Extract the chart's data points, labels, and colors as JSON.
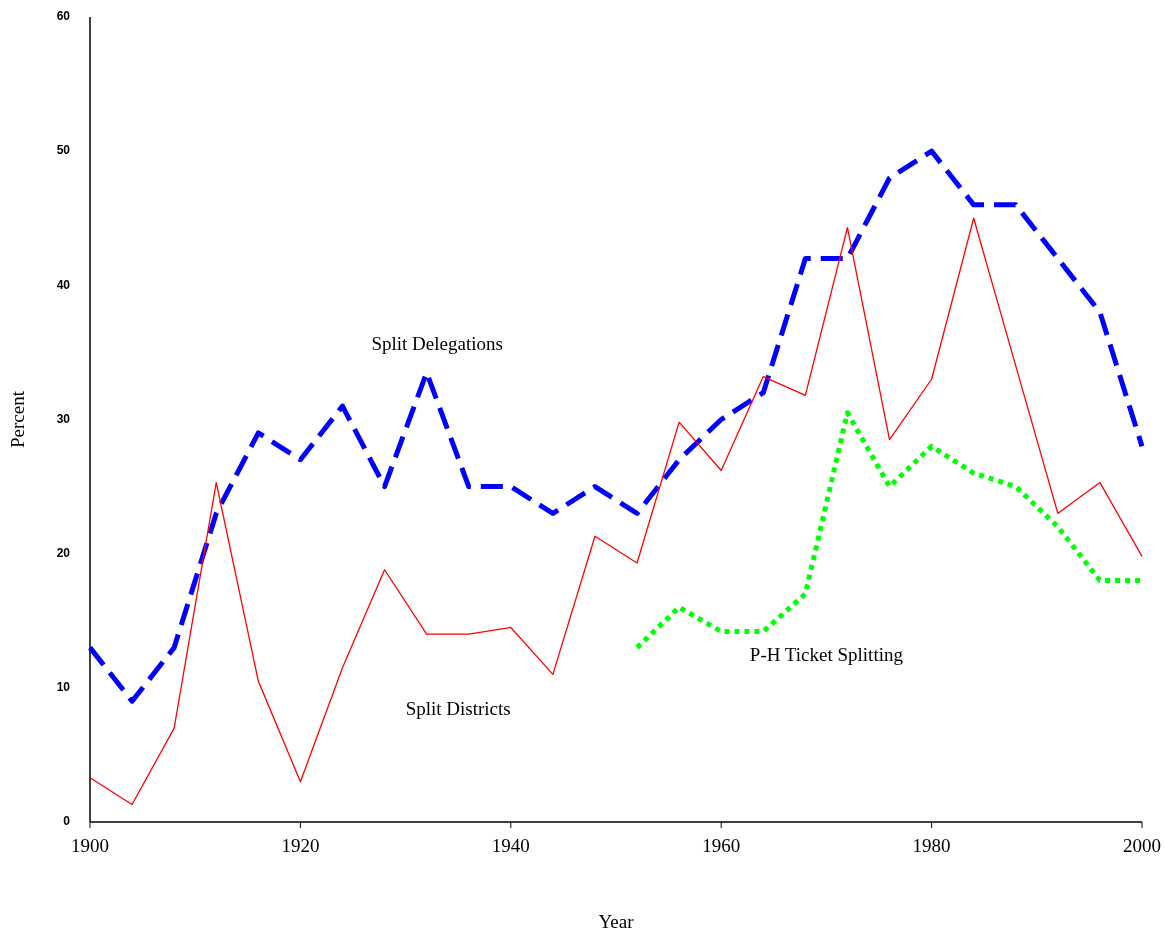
{
  "chart_data": {
    "type": "line",
    "xlabel": "Year",
    "ylabel": "Percent",
    "x": [
      1900,
      1904,
      1908,
      1912,
      1916,
      1920,
      1924,
      1928,
      1932,
      1936,
      1940,
      1944,
      1948,
      1952,
      1956,
      1960,
      1964,
      1968,
      1972,
      1976,
      1980,
      1984,
      1988,
      1992,
      1996,
      2000
    ],
    "series": [
      {
        "name": "Split Delegations",
        "color": "#0000ff",
        "line_style": "dashed",
        "values": [
          13,
          9,
          13,
          23,
          29,
          27,
          31,
          25,
          33.5,
          25,
          25,
          23,
          25,
          23,
          27,
          30,
          32,
          42,
          42,
          48,
          50,
          46,
          46,
          42,
          38,
          28
        ]
      },
      {
        "name": "Split Districts",
        "color": "#ff0000",
        "line_style": "solid",
        "values": [
          3.3,
          1.3,
          7,
          25.3,
          10.5,
          3,
          11.5,
          18.8,
          14,
          14,
          14.5,
          11,
          21.3,
          19.3,
          29.8,
          26.2,
          33.2,
          31.8,
          44.3,
          28.5,
          33,
          45,
          34,
          23,
          25.3,
          19.8
        ]
      },
      {
        "name": "P-H Ticket Splitting",
        "color": "#00ff00",
        "line_style": "dotted",
        "values": [
          null,
          null,
          null,
          null,
          null,
          null,
          null,
          null,
          null,
          null,
          null,
          null,
          null,
          13,
          16,
          14.2,
          14.2,
          17,
          30.5,
          25,
          28,
          26,
          25,
          22,
          18,
          18
        ]
      }
    ],
    "xlim": [
      1900,
      2000
    ],
    "xticks": [
      1900,
      1920,
      1940,
      1960,
      1980,
      2000
    ],
    "ylim": [
      0,
      60
    ],
    "yticks": [
      0,
      10,
      20,
      30,
      40,
      50,
      60
    ],
    "grid": false,
    "marker": "none"
  }
}
